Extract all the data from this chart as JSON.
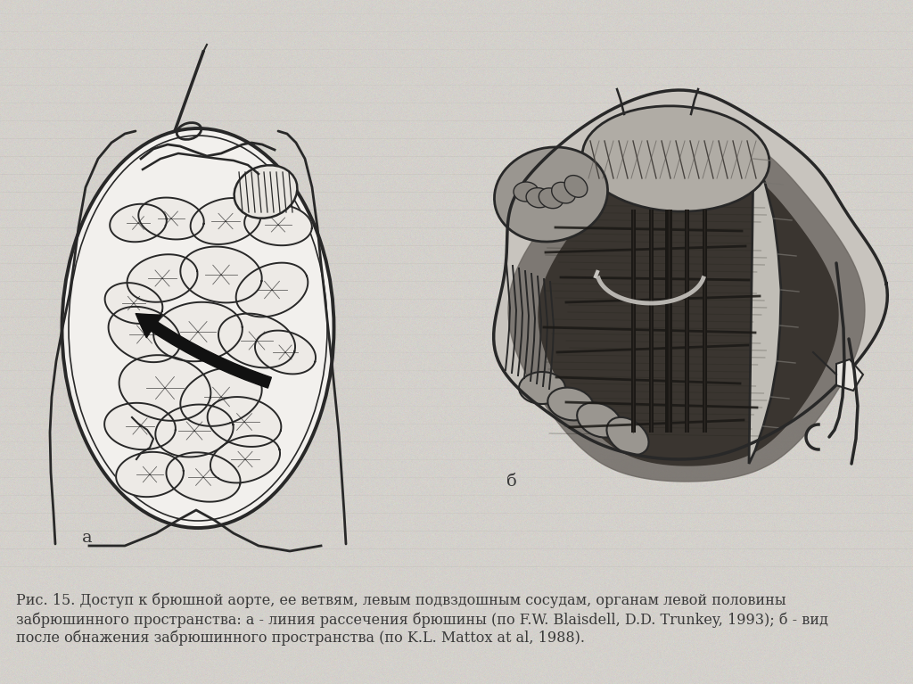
{
  "bg_color": "#d4d1cc",
  "fig_width": 10.24,
  "fig_height": 7.67,
  "dpi": 100,
  "label_a": "a",
  "label_b": "б",
  "caption_line1": "Рис. 15. Доступ к брюшной аорте, ее ветвям, левым подвздошным сосудам, органам левой половины",
  "caption_line2": "забрюшинного пространства: а - линия рассечения брюшины (по F.W. Blaisdell, D.D. Trunkey, 1993); б - вид",
  "caption_line3": "после обнажения забрюшинного пространства (по K.L. Mattox at al, 1988).",
  "text_color": "#3a3a3a",
  "caption_fontsize": 11.5,
  "label_fontsize": 14
}
